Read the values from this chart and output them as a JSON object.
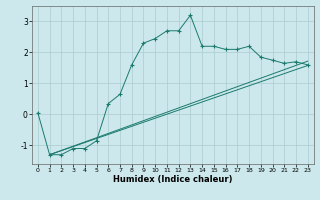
{
  "title": "",
  "xlabel": "Humidex (Indice chaleur)",
  "bg_color": "#cce8ec",
  "line_color": "#1a7a6e",
  "grid_color": "#aaccd0",
  "xlim": [
    -0.5,
    23.5
  ],
  "ylim": [
    -1.6,
    3.5
  ],
  "xticks": [
    0,
    1,
    2,
    3,
    4,
    5,
    6,
    7,
    8,
    9,
    10,
    11,
    12,
    13,
    14,
    15,
    16,
    17,
    18,
    19,
    20,
    21,
    22,
    23
  ],
  "yticks": [
    -1,
    0,
    1,
    2,
    3
  ],
  "curve1_x": [
    0,
    1,
    2,
    3,
    4,
    5,
    6,
    7,
    8,
    9,
    10,
    11,
    12,
    13,
    14,
    15,
    16,
    17,
    18,
    19,
    20,
    21,
    22,
    23
  ],
  "curve1_y": [
    0.05,
    -1.3,
    -1.3,
    -1.1,
    -1.1,
    -0.85,
    0.35,
    0.65,
    1.6,
    2.3,
    2.45,
    2.7,
    2.7,
    3.2,
    2.2,
    2.2,
    2.1,
    2.1,
    2.2,
    1.85,
    1.75,
    1.65,
    1.7,
    1.6
  ],
  "line2_x": [
    1,
    23
  ],
  "line2_y": [
    -1.3,
    1.58
  ],
  "line3_x": [
    1,
    23
  ],
  "line3_y": [
    -1.3,
    1.72
  ]
}
